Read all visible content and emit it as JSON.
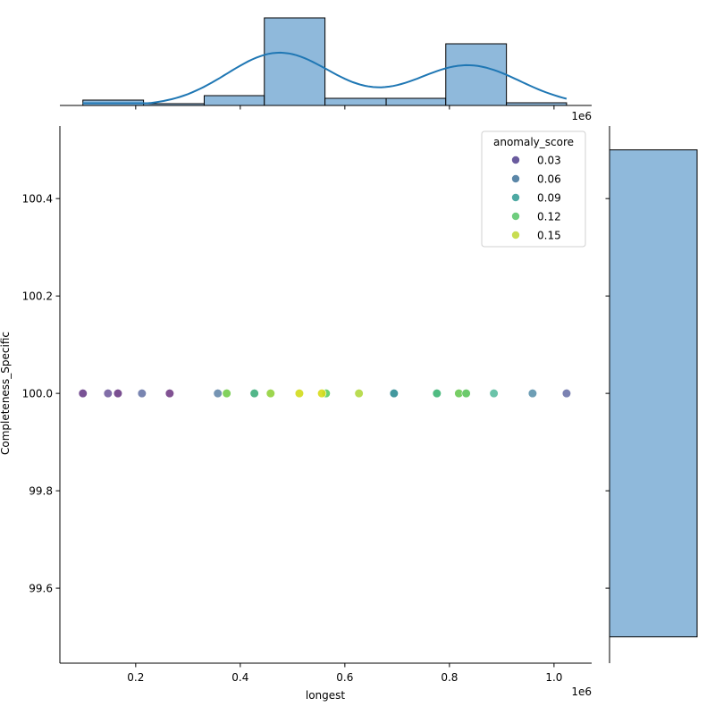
{
  "chart_data": {
    "type": "scatter",
    "plot_kind": "jointplot",
    "title": "",
    "xlabel": "longest",
    "ylabel": "Completeness_Specific",
    "x_offset_label": "1e6",
    "xlim": [
      0.055,
      1.072
    ],
    "ylim": [
      99.446,
      100.549
    ],
    "x_ticks": [
      0.2,
      0.4,
      0.6,
      0.8,
      1.0
    ],
    "x_tick_labels": [
      "0.2",
      "0.4",
      "0.6",
      "0.8",
      "1.0"
    ],
    "y_ticks": [
      99.6,
      99.8,
      100.0,
      100.2,
      100.4
    ],
    "y_tick_labels": [
      "99.6",
      "99.8",
      "100.0",
      "100.2",
      "100.4"
    ],
    "grid": false,
    "hue": "anomaly_score",
    "legend": {
      "title": "anomaly_score",
      "position": "upper right",
      "entries": [
        {
          "label": "0.03",
          "color": "#6a5b9e"
        },
        {
          "label": "0.06",
          "color": "#5b87a8"
        },
        {
          "label": "0.09",
          "color": "#4ea9a3"
        },
        {
          "label": "0.12",
          "color": "#6fcd7e"
        },
        {
          "label": "0.15",
          "color": "#c8dd50"
        }
      ]
    },
    "points": [
      {
        "x": 0.099,
        "y": 100.0,
        "color": "#6a3f8a"
      },
      {
        "x": 0.147,
        "y": 100.0,
        "color": "#735e9e"
      },
      {
        "x": 0.166,
        "y": 100.0,
        "color": "#6c3c85"
      },
      {
        "x": 0.212,
        "y": 100.0,
        "color": "#6a78a8"
      },
      {
        "x": 0.265,
        "y": 100.0,
        "color": "#733f87"
      },
      {
        "x": 0.357,
        "y": 100.0,
        "color": "#6688ab"
      },
      {
        "x": 0.374,
        "y": 100.0,
        "color": "#74cc4c"
      },
      {
        "x": 0.427,
        "y": 100.0,
        "color": "#3fae7c"
      },
      {
        "x": 0.458,
        "y": 100.0,
        "color": "#92d23c"
      },
      {
        "x": 0.513,
        "y": 100.0,
        "color": "#d2dc1c"
      },
      {
        "x": 0.564,
        "y": 100.0,
        "color": "#5ccd60"
      },
      {
        "x": 0.556,
        "y": 100.0,
        "color": "#d8dc1a"
      },
      {
        "x": 0.627,
        "y": 100.0,
        "color": "#b2d840"
      },
      {
        "x": 0.694,
        "y": 100.0,
        "color": "#2f8d93"
      },
      {
        "x": 0.776,
        "y": 100.0,
        "color": "#3db574"
      },
      {
        "x": 0.818,
        "y": 100.0,
        "color": "#69c954"
      },
      {
        "x": 0.832,
        "y": 100.0,
        "color": "#5cc45c"
      },
      {
        "x": 0.885,
        "y": 100.0,
        "color": "#5bbca0"
      },
      {
        "x": 0.959,
        "y": 100.0,
        "color": "#5e94ad"
      },
      {
        "x": 1.024,
        "y": 100.0,
        "color": "#6d74aa"
      }
    ],
    "marginal_x": {
      "type": "histogram",
      "kde": true,
      "bin_edges": [
        0.099,
        0.215,
        0.331,
        0.446,
        0.562,
        0.679,
        0.793,
        0.909,
        1.024
      ],
      "relative_heights": [
        6,
        2,
        11,
        98,
        8,
        8,
        69,
        3
      ],
      "kde_peaks": [
        {
          "x": 0.475,
          "relative_height": 59
        },
        {
          "x": 0.835,
          "relative_height": 45
        }
      ],
      "fill_color": "#8fb9db",
      "line_color": "#1f77b4"
    },
    "marginal_y": {
      "type": "histogram",
      "bin_edges": [
        99.5,
        100.5
      ],
      "relative_heights": [
        98
      ],
      "fill_color": "#8fb9db"
    }
  }
}
